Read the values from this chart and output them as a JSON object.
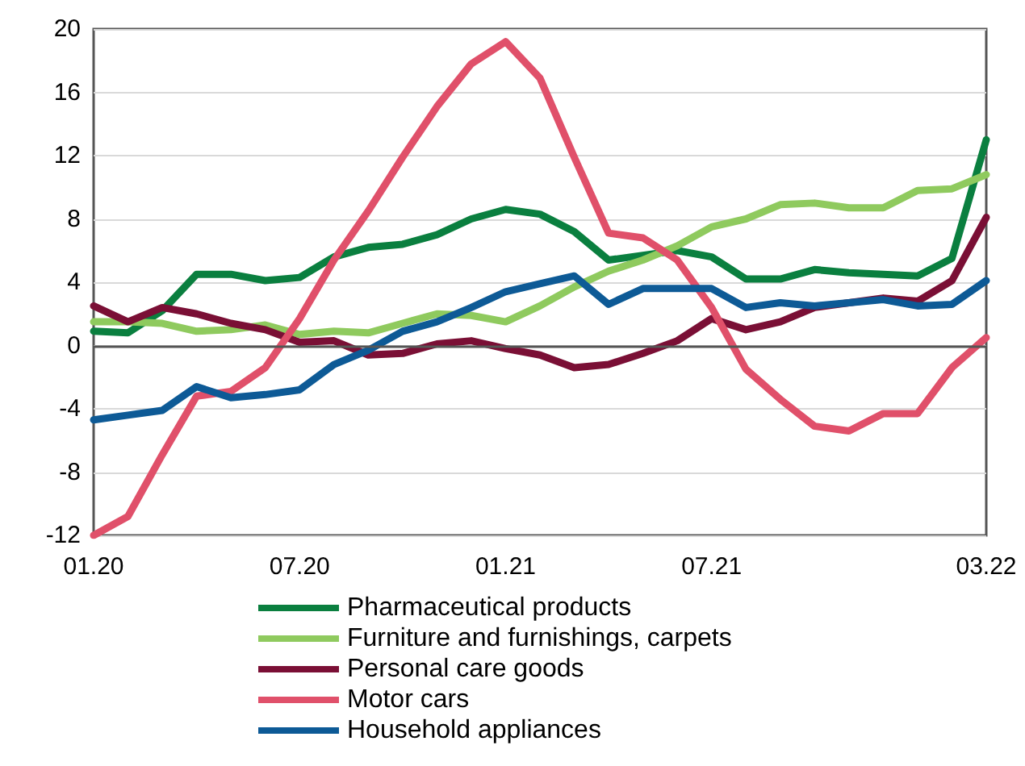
{
  "chart_data": {
    "type": "line",
    "categories": [
      "01.20",
      null,
      null,
      null,
      null,
      null,
      "07.20",
      null,
      null,
      null,
      null,
      null,
      "01.21",
      null,
      null,
      null,
      null,
      null,
      "07.21",
      null,
      null,
      null,
      null,
      null,
      null,
      null,
      "03.22"
    ],
    "series": [
      {
        "name": "Pharmaceutical products",
        "color": "#0a7f3f",
        "values": [
          0.9,
          0.8,
          2.2,
          4.5,
          4.5,
          4.1,
          4.3,
          5.6,
          6.2,
          6.4,
          7.0,
          8.0,
          8.6,
          8.3,
          7.2,
          5.4,
          5.7,
          6.0,
          5.6,
          4.2,
          4.2,
          4.8,
          4.6,
          4.5,
          4.4,
          5.5,
          13.0
        ]
      },
      {
        "name": "Furniture and furnishings, carpets",
        "color": "#8fca5e",
        "values": [
          1.5,
          1.5,
          1.4,
          0.9,
          1.0,
          1.3,
          0.7,
          0.9,
          0.8,
          1.4,
          2.0,
          1.9,
          1.5,
          2.5,
          3.7,
          4.7,
          5.4,
          6.3,
          7.5,
          8.0,
          8.9,
          9.0,
          8.7,
          8.7,
          9.8,
          9.9,
          10.8
        ]
      },
      {
        "name": "Personal care goods",
        "color": "#7a0f35",
        "values": [
          2.5,
          1.5,
          2.4,
          2.0,
          1.4,
          1.0,
          0.2,
          0.3,
          -0.6,
          -0.5,
          0.1,
          0.3,
          -0.2,
          -0.6,
          -1.4,
          -1.2,
          -0.5,
          0.3,
          1.7,
          1.0,
          1.5,
          2.4,
          2.7,
          3.0,
          2.8,
          4.1,
          8.1
        ]
      },
      {
        "name": "Motor cars",
        "color": "#e0506a",
        "values": [
          -12.0,
          -10.8,
          -6.9,
          -3.2,
          -2.9,
          -1.4,
          1.7,
          5.4,
          8.5,
          11.9,
          15.1,
          17.8,
          19.2,
          16.9,
          11.9,
          7.1,
          6.8,
          5.4,
          2.4,
          -1.5,
          -3.4,
          -5.1,
          -5.4,
          -4.3,
          -4.3,
          -1.4,
          0.5
        ]
      },
      {
        "name": "Household appliances",
        "color": "#0d5a96",
        "values": [
          -4.7,
          -4.4,
          -4.1,
          -2.6,
          -3.3,
          -3.1,
          -2.8,
          -1.2,
          -0.3,
          0.9,
          1.5,
          2.4,
          3.4,
          3.9,
          4.4,
          2.6,
          3.6,
          3.6,
          3.6,
          2.4,
          2.7,
          2.5,
          2.7,
          2.9,
          2.5,
          2.6,
          4.1
        ]
      }
    ],
    "ylim": [
      -12,
      20
    ],
    "yticks": [
      -12,
      -8,
      -4,
      0,
      4,
      8,
      12,
      16,
      20
    ],
    "grid": "y",
    "legend": "bottom",
    "marker": "none",
    "line_style": "solid",
    "ref_lines": [
      {
        "axis": "y",
        "value": 0,
        "color": "#555555"
      }
    ]
  }
}
